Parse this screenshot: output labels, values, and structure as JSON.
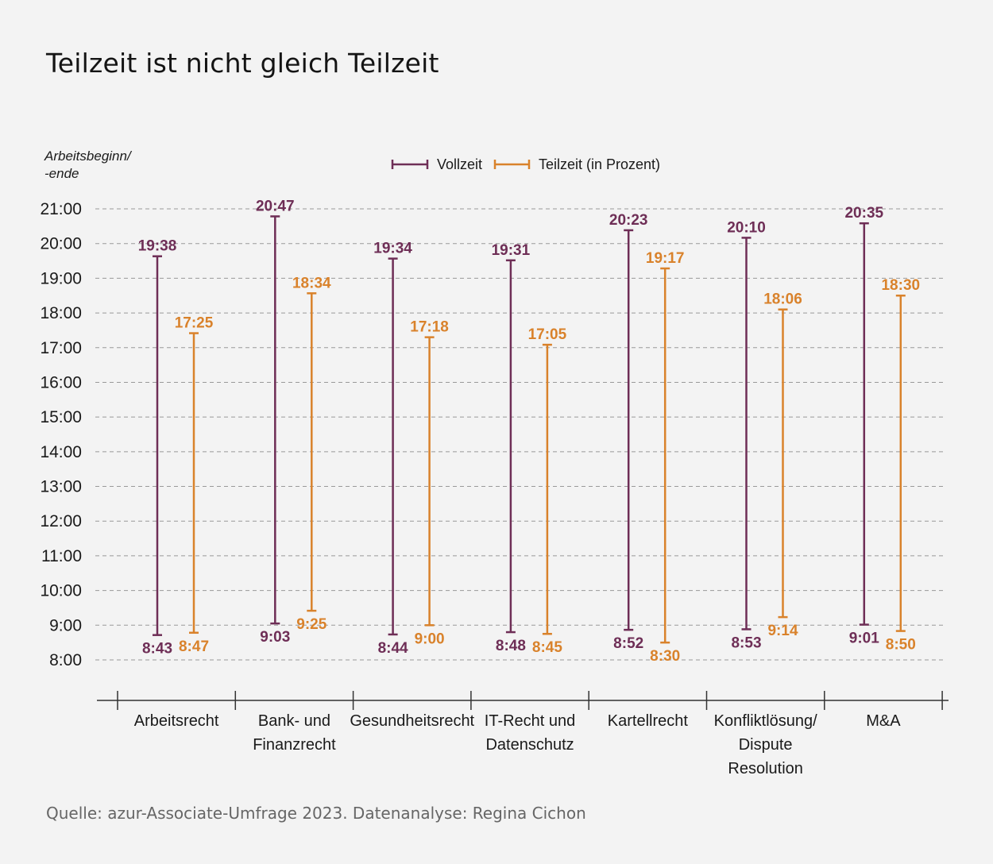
{
  "title": "Teilzeit ist nicht gleich Teilzeit",
  "source": "Quelle: azur-Associate-Umfrage 2023. Datenanalyse: Regina Cichon",
  "colors": {
    "vollzeit": "#6e2e56",
    "teilzeit": "#d9822b",
    "grid": "#999999",
    "axis": "#333333",
    "text": "#1a1a1a"
  },
  "chart_data": {
    "type": "range-bar",
    "title": "Teilzeit ist nicht gleich Teilzeit",
    "ylabel": "Arbeitsbeginn/\n-ende",
    "ylabel_lines": [
      "Arbeitsbeginn/",
      "-ende"
    ],
    "xlabel": "",
    "ylim": [
      "8:00",
      "21:00"
    ],
    "yticks": [
      "21:00",
      "20:00",
      "19:00",
      "18:00",
      "17:00",
      "16:00",
      "15:00",
      "14:00",
      "13:00",
      "12:00",
      "11:00",
      "10:00",
      "9:00",
      "8:00"
    ],
    "grid": true,
    "legend_position": "top-center",
    "categories": [
      [
        "Arbeitsrecht"
      ],
      [
        "Bank- und",
        "Finanzrecht"
      ],
      [
        "Gesundheitsrecht"
      ],
      [
        "IT-Recht und",
        "Datenschutz"
      ],
      [
        "Kartellrecht"
      ],
      [
        "Konfliktlösung/",
        "Dispute",
        "Resolution"
      ],
      [
        "M&A"
      ]
    ],
    "series": [
      {
        "name": "Vollzeit",
        "start": [
          "8:43",
          "9:03",
          "8:44",
          "8:48",
          "8:52",
          "8:53",
          "9:01"
        ],
        "end": [
          "19:38",
          "20:47",
          "19:34",
          "19:31",
          "20:23",
          "20:10",
          "20:35"
        ]
      },
      {
        "name": "Teilzeit (in Prozent)",
        "start": [
          "8:47",
          "9:25",
          "9:00",
          "8:45",
          "8:30",
          "9:14",
          "8:50"
        ],
        "end": [
          "17:25",
          "18:34",
          "17:18",
          "17:05",
          "19:17",
          "18:06",
          "18:30"
        ]
      }
    ]
  }
}
